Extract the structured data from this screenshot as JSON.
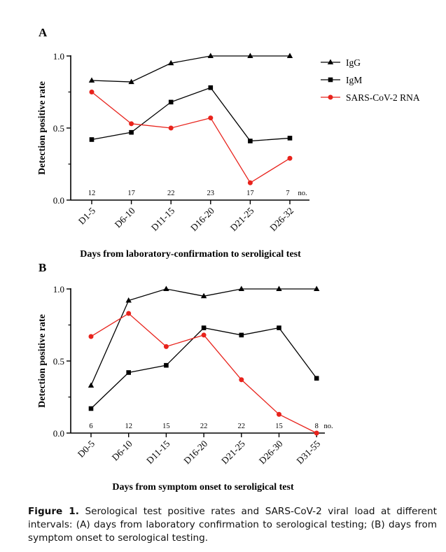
{
  "panels": [
    {
      "label": "A",
      "ylabel": "Detection positive rate",
      "xlabel": "Days from laboratory-confirmation to seroligical test",
      "categories": [
        "D1-5",
        "D6-10",
        "D11-15",
        "D16-20",
        "D21-25",
        "D26-32"
      ],
      "counts": [
        "12",
        "17",
        "22",
        "23",
        "17",
        "7"
      ],
      "no_label": "no.",
      "yticks": [
        "0.0",
        "0.5",
        "1.0"
      ],
      "legend": [
        {
          "name": "IgG",
          "color": "#000000",
          "marker": "triangle"
        },
        {
          "name": "IgM",
          "color": "#000000",
          "marker": "square"
        },
        {
          "name": "SARS-CoV-2 RNA",
          "color": "#e8231c",
          "marker": "circle"
        }
      ]
    },
    {
      "label": "B",
      "ylabel": "Detection positive rate",
      "xlabel": "Days from symptom onset to seroligical test",
      "categories": [
        "D0-5",
        "D6-10",
        "D11-15",
        "D16-20",
        "D21-25",
        "D26-30",
        "D31-55"
      ],
      "counts": [
        "6",
        "12",
        "15",
        "22",
        "22",
        "15",
        "8"
      ],
      "no_label": "no.",
      "yticks": [
        "0.0",
        "0.5",
        "1.0"
      ]
    }
  ],
  "chart_data": [
    {
      "type": "line",
      "title": "A",
      "xlabel": "Days from laboratory-confirmation to seroligical test",
      "ylabel": "Detection positive rate",
      "ylim": [
        0,
        1.0
      ],
      "categories": [
        "D1-5",
        "D6-10",
        "D11-15",
        "D16-20",
        "D21-25",
        "D26-32"
      ],
      "series": [
        {
          "name": "IgG",
          "color": "#000000",
          "marker": "triangle",
          "values": [
            0.83,
            0.82,
            0.95,
            1.0,
            1.0,
            1.0
          ]
        },
        {
          "name": "IgM",
          "color": "#000000",
          "marker": "square",
          "values": [
            0.42,
            0.47,
            0.68,
            0.78,
            0.41,
            0.43
          ]
        },
        {
          "name": "SARS-CoV-2 RNA",
          "color": "#e8231c",
          "marker": "circle",
          "values": [
            0.75,
            0.53,
            0.5,
            0.57,
            0.12,
            0.29
          ]
        }
      ],
      "annotations": [
        "12",
        "17",
        "22",
        "23",
        "17",
        "7",
        "no."
      ],
      "legend": "top-right"
    },
    {
      "type": "line",
      "title": "B",
      "xlabel": "Days from symptom onset to seroligical test",
      "ylabel": "Detection positive rate",
      "ylim": [
        0,
        1.0
      ],
      "categories": [
        "D0-5",
        "D6-10",
        "D11-15",
        "D16-20",
        "D21-25",
        "D26-30",
        "D31-55"
      ],
      "series": [
        {
          "name": "IgG",
          "color": "#000000",
          "marker": "triangle",
          "values": [
            0.33,
            0.92,
            1.0,
            0.95,
            1.0,
            1.0,
            1.0
          ]
        },
        {
          "name": "IgM",
          "color": "#000000",
          "marker": "square",
          "values": [
            0.17,
            0.42,
            0.47,
            0.73,
            0.68,
            0.73,
            0.38
          ]
        },
        {
          "name": "SARS-CoV-2 RNA",
          "color": "#e8231c",
          "marker": "circle",
          "values": [
            0.67,
            0.83,
            0.6,
            0.68,
            0.37,
            0.13,
            0.0
          ]
        }
      ],
      "annotations": [
        "6",
        "12",
        "15",
        "22",
        "22",
        "15",
        "8",
        "no."
      ]
    }
  ],
  "caption": {
    "label": "Figure 1.",
    "text": "Serological test positive rates and SARS-CoV-2 viral load at different intervals: (A) days from laboratory confirmation to serological testing; (B) days from symptom onset to serological testing."
  }
}
